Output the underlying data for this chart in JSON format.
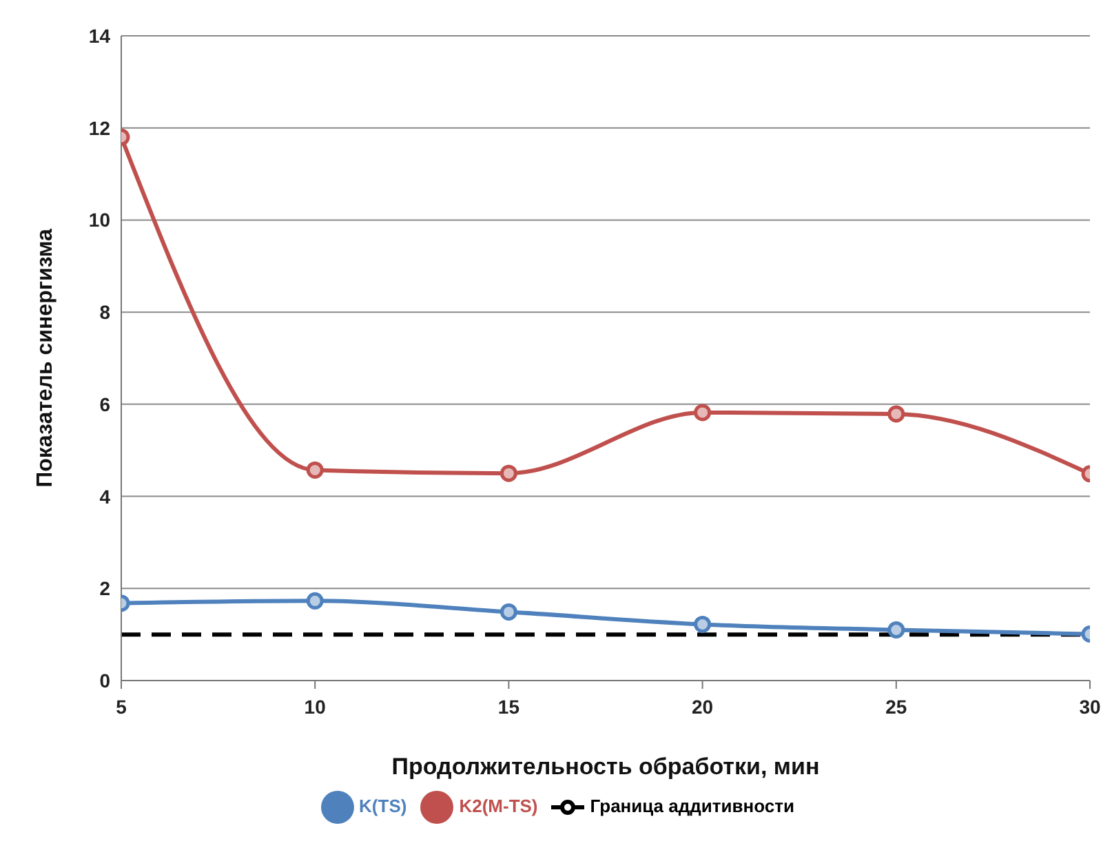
{
  "chart_data": {
    "type": "line",
    "xlabel": "Продолжительность обработки, мин",
    "ylabel": "Показатель синергизма",
    "x": [
      5,
      10,
      15,
      20,
      25,
      30
    ],
    "series": [
      {
        "name": "Граница аддитивности",
        "color": "#000000",
        "values": [
          1,
          1,
          1,
          1,
          1,
          1
        ],
        "marker": "none",
        "line_style": "dashed"
      },
      {
        "name": "K(TS)",
        "color": "#4f81bd",
        "values": [
          1.68,
          1.73,
          1.49,
          1.22,
          1.1,
          1.01
        ]
      },
      {
        "name": "K2(M-TS)",
        "color": "#c0504d",
        "values": [
          11.8,
          4.57,
          4.5,
          5.82,
          5.79,
          4.49
        ]
      }
    ],
    "xlim": [
      5,
      30
    ],
    "xticks": [
      5,
      10,
      15,
      20,
      25,
      30
    ],
    "ylim": [
      0,
      14
    ],
    "yticks": [
      0,
      2,
      4,
      6,
      8,
      10,
      12,
      14
    ],
    "grid": "y",
    "legend": "bottom",
    "marker": "circle",
    "line_style": "solid"
  }
}
